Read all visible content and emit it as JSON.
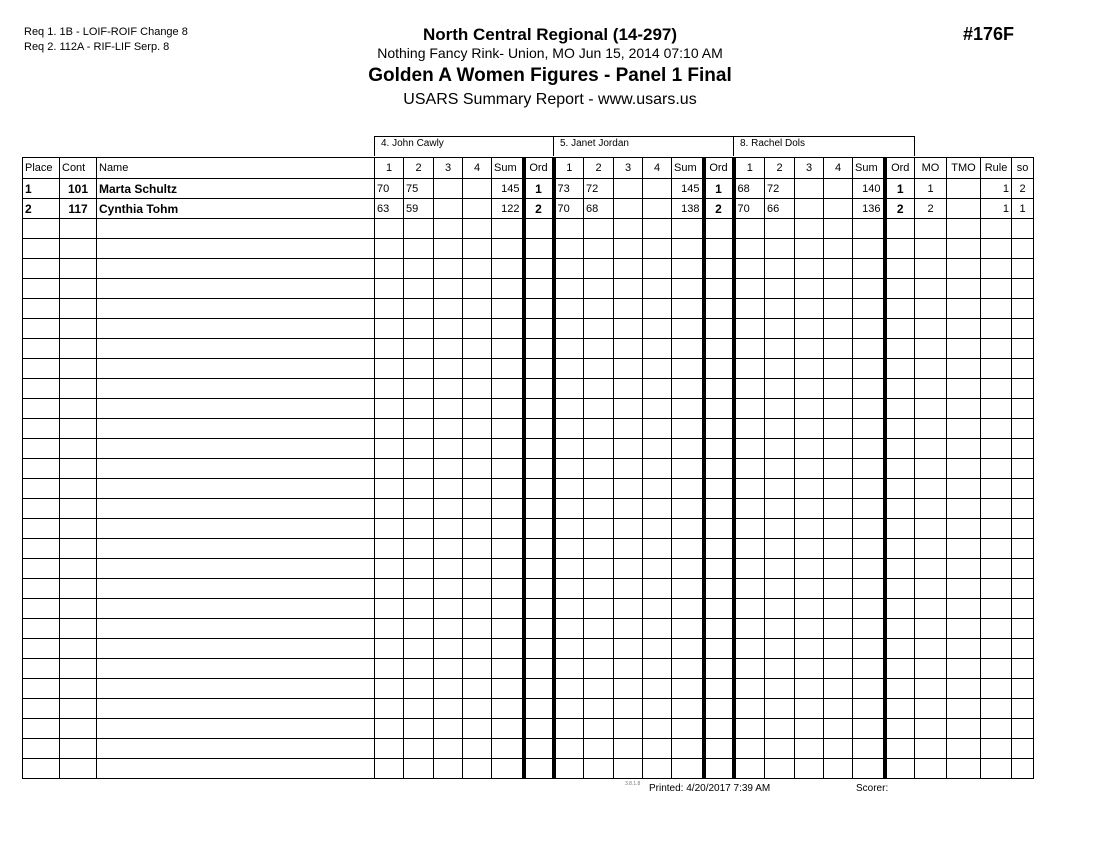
{
  "requirements": [
    "Req  1.  1B - LOIF-ROIF Change 8",
    "Req  2.  112A - RIF-LIF Serp. 8"
  ],
  "header": {
    "title": "North Central Regional (14-297)",
    "location": "Nothing Fancy Rink- Union, MO  Jun 15, 2014  07:10 AM",
    "event": "Golden A Women Figures - Panel 1 Final",
    "report": "USARS Summary Report - www.usars.us",
    "event_number": "#176F"
  },
  "judges": [
    "4.  John Cawly",
    "5.  Janet Jordan",
    "8.  Rachel Dols"
  ],
  "columns": {
    "place": "Place",
    "cont": "Cont",
    "name": "Name",
    "scores": [
      "1",
      "2",
      "3",
      "4"
    ],
    "sum": "Sum",
    "ord": "Ord",
    "mo": "MO",
    "tmo": "TMO",
    "rule": "Rule",
    "so": "so"
  },
  "rows": [
    {
      "place": "1",
      "cont": "101",
      "name": "Marta Schultz",
      "judges": [
        {
          "s": [
            "70",
            "75",
            "",
            ""
          ],
          "sum": "145",
          "ord": "1"
        },
        {
          "s": [
            "73",
            "72",
            "",
            ""
          ],
          "sum": "145",
          "ord": "1"
        },
        {
          "s": [
            "68",
            "72",
            "",
            ""
          ],
          "sum": "140",
          "ord": "1"
        }
      ],
      "mo": "1",
      "tmo": "",
      "rule": "1",
      "so": "2"
    },
    {
      "place": "2",
      "cont": "117",
      "name": "Cynthia Tohm",
      "judges": [
        {
          "s": [
            "63",
            "59",
            "",
            ""
          ],
          "sum": "122",
          "ord": "2"
        },
        {
          "s": [
            "70",
            "68",
            "",
            ""
          ],
          "sum": "138",
          "ord": "2"
        },
        {
          "s": [
            "70",
            "66",
            "",
            ""
          ],
          "sum": "136",
          "ord": "2"
        }
      ],
      "mo": "2",
      "tmo": "",
      "rule": "1",
      "so": "1"
    }
  ],
  "footer": {
    "version": "3.8.1.8",
    "printed": "Printed:  4/20/2017  7:39 AM",
    "scorer": "Scorer:"
  }
}
